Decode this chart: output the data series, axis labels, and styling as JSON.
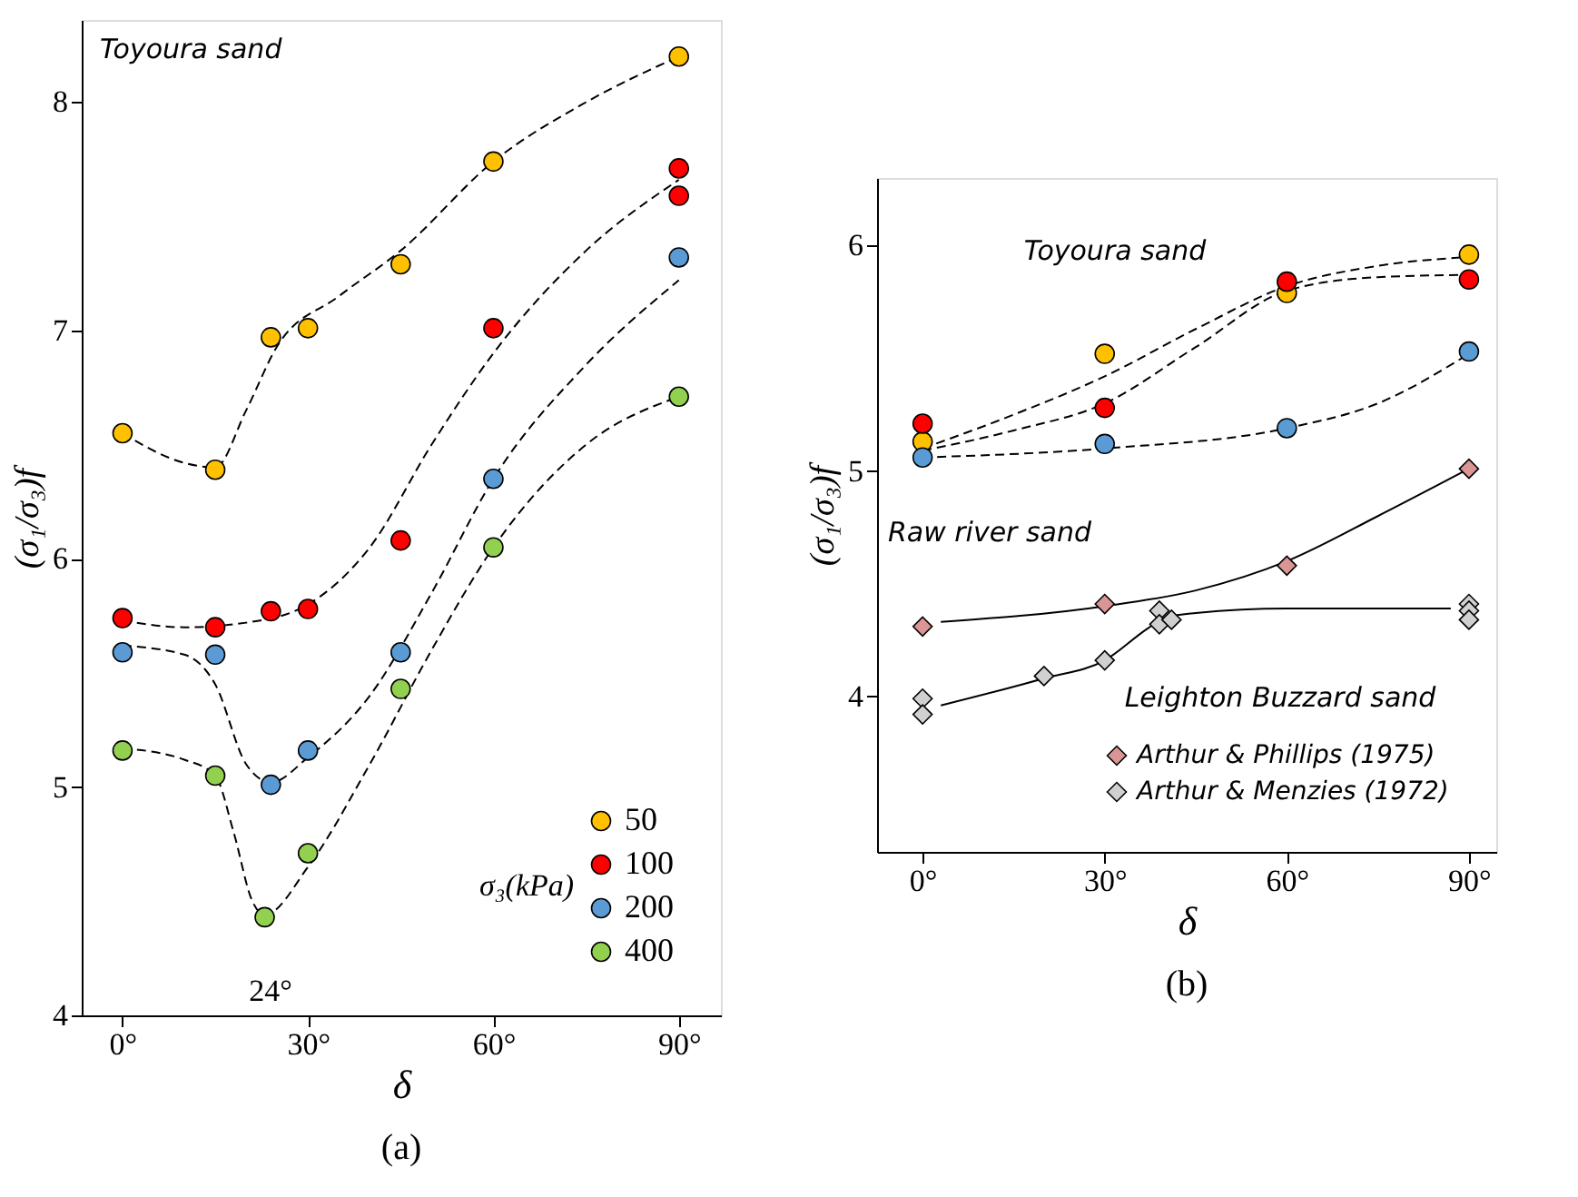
{
  "chart_data": [
    {
      "type": "scatter",
      "xlabel": "δ",
      "ylabel": "(σ₁/σ₃)f",
      "legend_title": "σ₃(kPa)",
      "legend": "bottom right",
      "marker": "circle",
      "grid": false,
      "xlim": [
        -6.6,
        96.8
      ],
      "ylim": [
        4,
        8.36
      ],
      "xticks": [
        {
          "value": 0,
          "label": "0°"
        },
        {
          "value": 30,
          "label": "30°"
        },
        {
          "value": 60,
          "label": "60°"
        },
        {
          "value": 90,
          "label": "90°"
        }
      ],
      "yticks": [
        4,
        5,
        6,
        7,
        8
      ],
      "annotations": [
        "Toyoura sand",
        "24°",
        "(a)"
      ],
      "series": [
        {
          "name": "50",
          "color": "#ffc000",
          "x": [
            0,
            15,
            24,
            30,
            45,
            60,
            90
          ],
          "values": [
            6.55,
            6.39,
            6.97,
            7.01,
            7.29,
            7.74,
            8.2
          ]
        },
        {
          "name": "100",
          "color": "#ff0000",
          "x": [
            0,
            15,
            24,
            30,
            45,
            60,
            90,
            90
          ],
          "values": [
            5.74,
            5.7,
            5.77,
            5.78,
            6.08,
            7.01,
            7.59,
            7.71
          ]
        },
        {
          "name": "200",
          "color": "#5b9bd5",
          "x": [
            0,
            15,
            24,
            30,
            45,
            60,
            90
          ],
          "values": [
            5.59,
            5.58,
            5.01,
            5.16,
            5.59,
            6.35,
            7.32
          ]
        },
        {
          "name": "400",
          "color": "#92d050",
          "x": [
            0,
            15,
            23,
            30,
            45,
            60,
            90
          ],
          "values": [
            5.16,
            5.05,
            4.43,
            4.71,
            5.43,
            6.05,
            6.71
          ]
        },
        {
          "type": "line",
          "line_style": "dashed",
          "marker": "none",
          "color": "#000000",
          "x": [
            0,
            10,
            15,
            20,
            25,
            35,
            45,
            60,
            75,
            90
          ],
          "values": [
            6.55,
            6.42,
            6.4,
            6.65,
            6.93,
            7.15,
            7.35,
            7.74,
            8.0,
            8.2
          ]
        },
        {
          "type": "line",
          "line_style": "dashed",
          "marker": "none",
          "color": "#000000",
          "x": [
            0,
            10,
            20,
            30,
            40,
            50,
            60,
            75,
            90
          ],
          "values": [
            5.73,
            5.7,
            5.72,
            5.8,
            6.05,
            6.5,
            6.9,
            7.35,
            7.66
          ]
        },
        {
          "type": "line",
          "line_style": "dashed",
          "marker": "none",
          "color": "#000000",
          "x": [
            0,
            10,
            15,
            20,
            24,
            30,
            40,
            50,
            60,
            75,
            90
          ],
          "values": [
            5.62,
            5.58,
            5.45,
            5.1,
            5.02,
            5.13,
            5.4,
            5.85,
            6.35,
            6.85,
            7.22
          ]
        },
        {
          "type": "line",
          "line_style": "dashed",
          "marker": "none",
          "color": "#000000",
          "x": [
            0,
            10,
            15,
            18,
            21,
            23,
            30,
            40,
            50,
            60,
            75,
            90
          ],
          "values": [
            5.17,
            5.12,
            5.05,
            4.8,
            4.5,
            4.44,
            4.65,
            5.1,
            5.6,
            6.05,
            6.5,
            6.71
          ]
        }
      ]
    },
    {
      "type": "scatter",
      "xlabel": "δ",
      "ylabel": "(σ₁/σ₃)f",
      "legend": "bottom right",
      "marker": "circle",
      "grid": false,
      "xlim": [
        -7.5,
        94.5
      ],
      "ylim": [
        3.31,
        6.3
      ],
      "xticks": [
        {
          "value": 0,
          "label": "0°"
        },
        {
          "value": 30,
          "label": "30°"
        },
        {
          "value": 60,
          "label": "60°"
        },
        {
          "value": 90,
          "label": "90°"
        }
      ],
      "yticks": [
        4,
        5,
        6
      ],
      "annotations": [
        "Toyoura sand",
        "Raw river sand",
        "Leighton Buzzard sand",
        "(b)"
      ],
      "series": [
        {
          "color": "#ffc000",
          "x": [
            0,
            30,
            60,
            90
          ],
          "values": [
            5.13,
            5.52,
            5.79,
            5.96
          ]
        },
        {
          "color": "#ff0000",
          "x": [
            0,
            30,
            60,
            90
          ],
          "values": [
            5.21,
            5.28,
            5.84,
            5.85
          ]
        },
        {
          "color": "#5b9bd5",
          "x": [
            0,
            30,
            60,
            90
          ],
          "values": [
            5.06,
            5.12,
            5.19,
            5.53
          ]
        },
        {
          "name": "Arthur & Phillips (1975)",
          "color": "#d99694",
          "marker": "diamond",
          "x": [
            0,
            30,
            60,
            90
          ],
          "values": [
            4.31,
            4.41,
            4.58,
            5.01
          ]
        },
        {
          "name": "Arthur & Menzies (1972)",
          "color": "#d0d0d0",
          "marker": "diamond",
          "x": [
            0,
            0,
            20,
            30,
            39,
            39,
            41,
            90,
            90,
            90
          ],
          "values": [
            3.99,
            3.92,
            4.09,
            4.16,
            4.38,
            4.32,
            4.34,
            4.41,
            4.38,
            4.34
          ]
        },
        {
          "type": "line",
          "line_style": "dashed",
          "marker": "none",
          "color": "#000000",
          "x": [
            0,
            15,
            30,
            45,
            60,
            75,
            90
          ],
          "values": [
            5.1,
            5.25,
            5.42,
            5.63,
            5.82,
            5.91,
            5.95
          ]
        },
        {
          "type": "line",
          "line_style": "dashed",
          "marker": "none",
          "color": "#000000",
          "x": [
            0,
            15,
            30,
            45,
            60,
            75,
            90
          ],
          "values": [
            5.09,
            5.18,
            5.3,
            5.55,
            5.8,
            5.86,
            5.87
          ]
        },
        {
          "type": "line",
          "line_style": "dashed",
          "marker": "none",
          "color": "#000000",
          "x": [
            0,
            30,
            60,
            75,
            90
          ],
          "values": [
            5.06,
            5.1,
            5.19,
            5.3,
            5.52
          ]
        },
        {
          "type": "line",
          "line_style": "solid",
          "marker": "none",
          "color": "#000000",
          "x": [
            3,
            30,
            45,
            60,
            75,
            90
          ],
          "values": [
            4.33,
            4.4,
            4.47,
            4.6,
            4.8,
            5.01
          ]
        },
        {
          "type": "line",
          "line_style": "solid",
          "marker": "none",
          "color": "#000000",
          "x": [
            3,
            20,
            30,
            37,
            40,
            45,
            60,
            87
          ],
          "values": [
            3.96,
            4.08,
            4.16,
            4.3,
            4.35,
            4.37,
            4.39,
            4.39
          ]
        }
      ]
    }
  ]
}
